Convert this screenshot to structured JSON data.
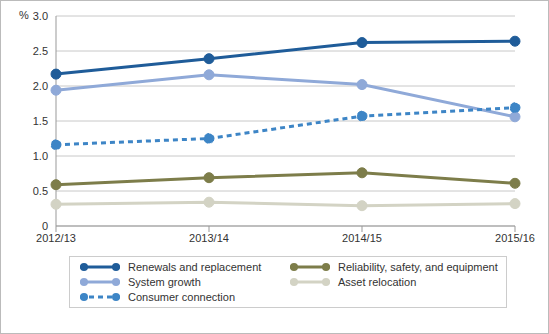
{
  "chart_data": {
    "type": "line",
    "ylabel": "%",
    "categories": [
      "2012/13",
      "2013/14",
      "2014/15",
      "2015/16"
    ],
    "ylim": [
      0,
      3
    ],
    "yticks": [
      0,
      0.5,
      {
        "value": 1,
        "label": "1.0"
      },
      1.5,
      {
        "value": 2,
        "label": "2.0"
      },
      2.5,
      {
        "value": 3,
        "label": "3.0"
      }
    ],
    "grid": true,
    "legend": "bottom",
    "series": [
      {
        "name": "Renewals and replacement",
        "color": "#1f5c99",
        "values": [
          2.17,
          2.39,
          2.62,
          2.64
        ],
        "marker": "circle",
        "line_style": "solid"
      },
      {
        "name": "Reliability, safety, and equipment",
        "color": "#7d7d4a",
        "values": [
          0.59,
          0.69,
          0.76,
          0.61
        ],
        "marker": "circle",
        "line_style": "solid"
      },
      {
        "name": "System growth",
        "color": "#8fa9d8",
        "values": [
          1.94,
          2.16,
          2.02,
          1.56
        ],
        "marker": "circle",
        "line_style": "solid"
      },
      {
        "name": "Asset relocation",
        "color": "#d3d3c4",
        "values": [
          0.31,
          0.34,
          0.29,
          0.32
        ],
        "marker": "circle",
        "line_style": "solid"
      },
      {
        "name": "Consumer connection",
        "color": "#3d85c6",
        "values": [
          1.16,
          1.25,
          1.57,
          1.69
        ],
        "marker": "circle",
        "line_style": "dashed"
      }
    ]
  }
}
